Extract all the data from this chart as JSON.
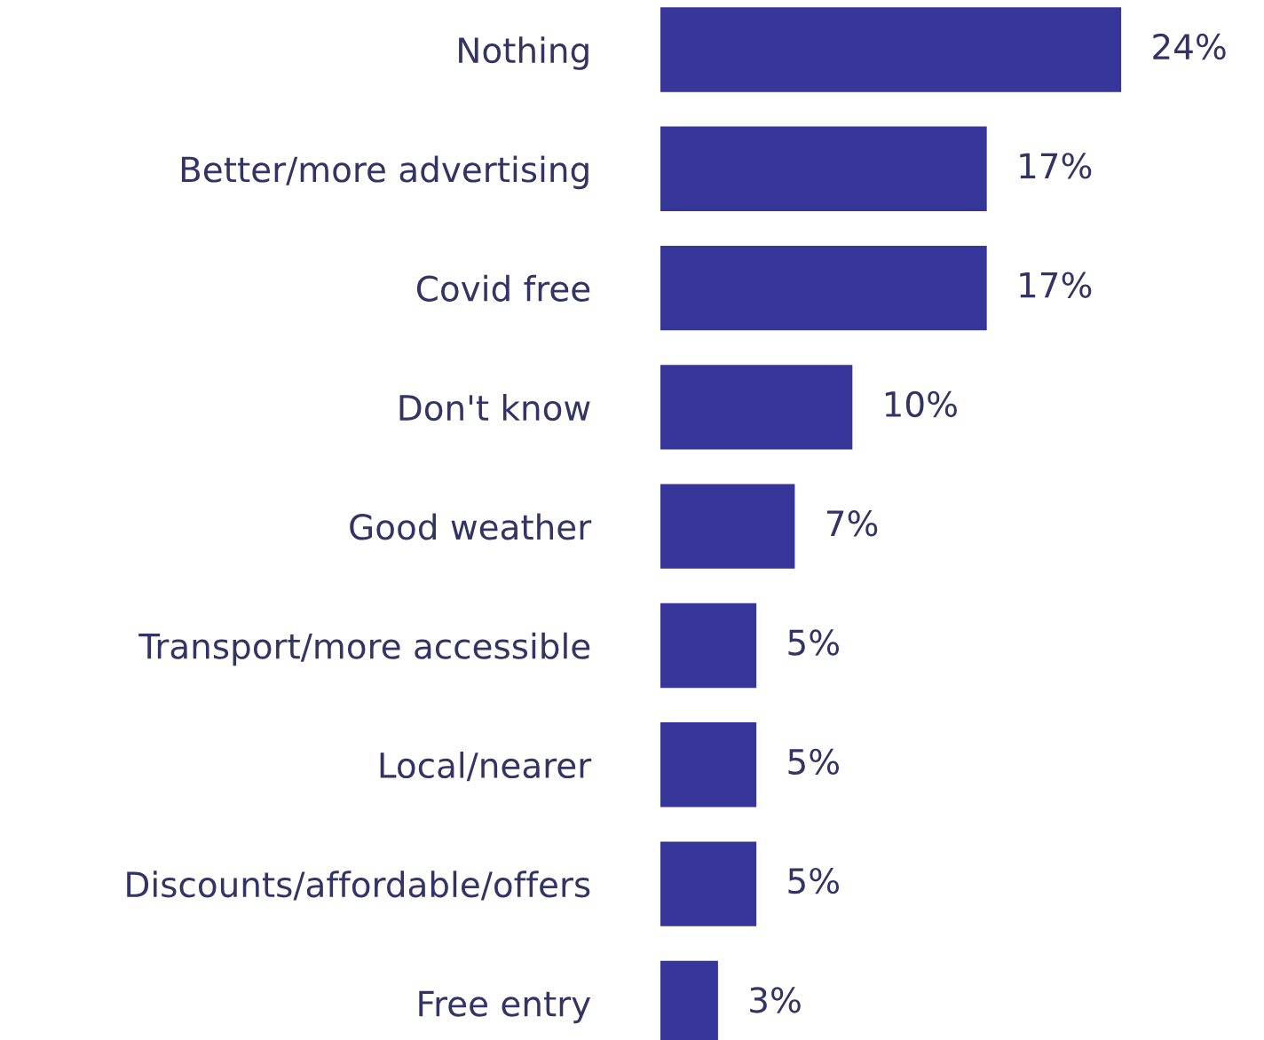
{
  "chart_data": {
    "type": "bar",
    "orientation": "horizontal",
    "categories": [
      "Nothing",
      "Better/more advertising",
      "Covid free",
      "Don't know",
      "Good weather",
      "Transport/more accessible",
      "Local/nearer",
      "Discounts/affordable/offers",
      "Free entry"
    ],
    "values": [
      24,
      17,
      17,
      10,
      7,
      5,
      5,
      5,
      3
    ],
    "value_labels": [
      "24%",
      "17%",
      "17%",
      "10%",
      "7%",
      "5%",
      "5%",
      "5%",
      "3%"
    ],
    "color": "#35359a",
    "grid": false,
    "legend": false,
    "tick_labels": "y"
  }
}
